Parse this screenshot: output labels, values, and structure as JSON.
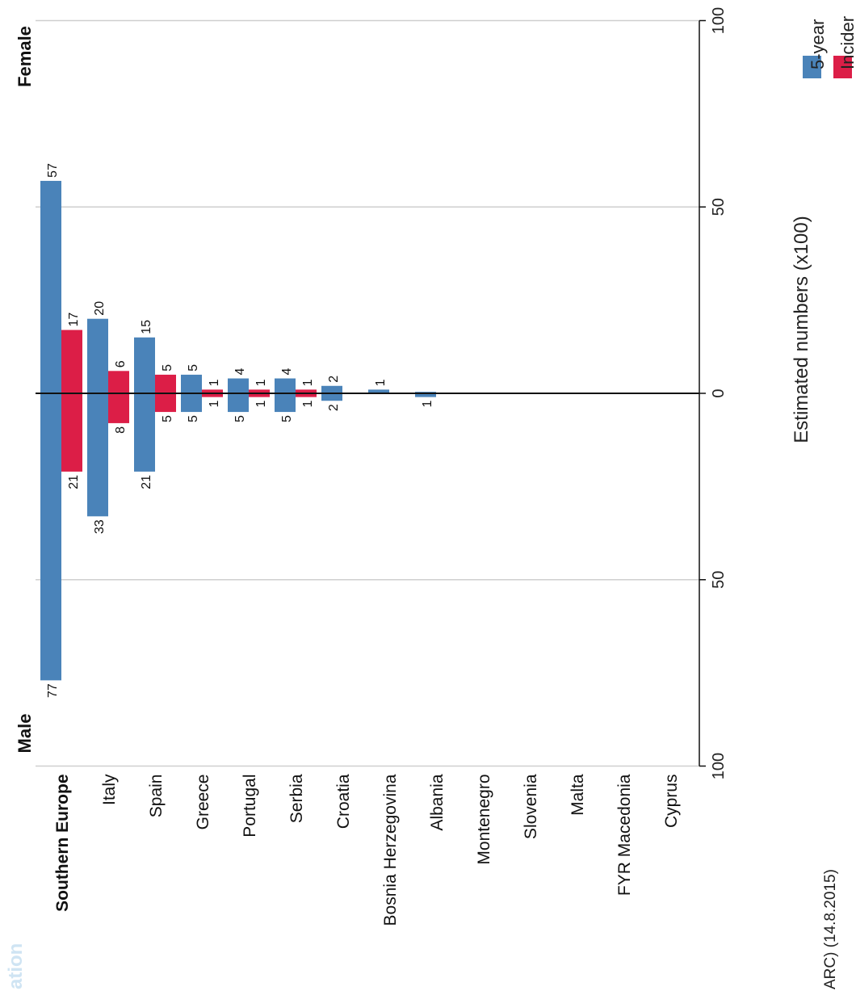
{
  "colors": {
    "prevalence": "#4a83b9",
    "incidence": "#dc1e47"
  },
  "labels": {
    "female": "Female",
    "male": "Male",
    "axis_title": "Estimated numbers (x100)",
    "corner_faded": "ation",
    "corner_source": "ARC) (14.8.2015)"
  },
  "legend": [
    {
      "label": "5-year",
      "color": "#4a83b9"
    },
    {
      "label": "Incider",
      "color": "#dc1e47"
    }
  ],
  "chart_data": {
    "type": "bar",
    "orientation": "back-to-back (rotated)",
    "value_axis": {
      "title": "Estimated numbers (x100)",
      "ticks_female": [
        100,
        50,
        0
      ],
      "ticks_male": [
        50,
        100
      ],
      "range": [
        -100,
        100
      ]
    },
    "categories": [
      "Southern Europe",
      "Italy",
      "Spain",
      "Greece",
      "Portugal",
      "Serbia",
      "Croatia",
      "Bosnia Herzegovina",
      "Albania",
      "Montenegro",
      "Slovenia",
      "Malta",
      "FYR Macedonia",
      "Cyprus"
    ],
    "series": [
      {
        "name": "5-year",
        "color": "#4a83b9",
        "female": [
          57,
          20,
          15,
          5,
          4,
          4,
          2,
          1,
          0.4,
          0,
          0,
          0,
          0,
          0
        ],
        "male": [
          77,
          33,
          21,
          5,
          5,
          5,
          2,
          0,
          1,
          0,
          0,
          0,
          0,
          0
        ],
        "female_labels": [
          "57",
          "20",
          "15",
          "5",
          "4",
          "4",
          "2",
          "1",
          "",
          "",
          "",
          "",
          "",
          ""
        ],
        "male_labels": [
          "77",
          "33",
          "21",
          "5",
          "5",
          "5",
          "2",
          "",
          "1",
          "",
          "",
          "",
          "",
          ""
        ]
      },
      {
        "name": "Incider",
        "color": "#dc1e47",
        "female": [
          17,
          6,
          5,
          1,
          1,
          1,
          0,
          0,
          0,
          0,
          0,
          0,
          0,
          0
        ],
        "male": [
          21,
          8,
          5,
          1,
          1,
          1,
          0,
          0,
          0,
          0,
          0,
          0,
          0,
          0
        ],
        "female_labels": [
          "17",
          "6",
          "5",
          "1",
          "1",
          "1",
          "",
          "",
          "",
          "",
          "",
          "",
          "",
          ""
        ],
        "male_labels": [
          "21",
          "8",
          "5",
          "1",
          "1",
          "1",
          "",
          "",
          "",
          "",
          "",
          "",
          "",
          ""
        ]
      }
    ]
  }
}
